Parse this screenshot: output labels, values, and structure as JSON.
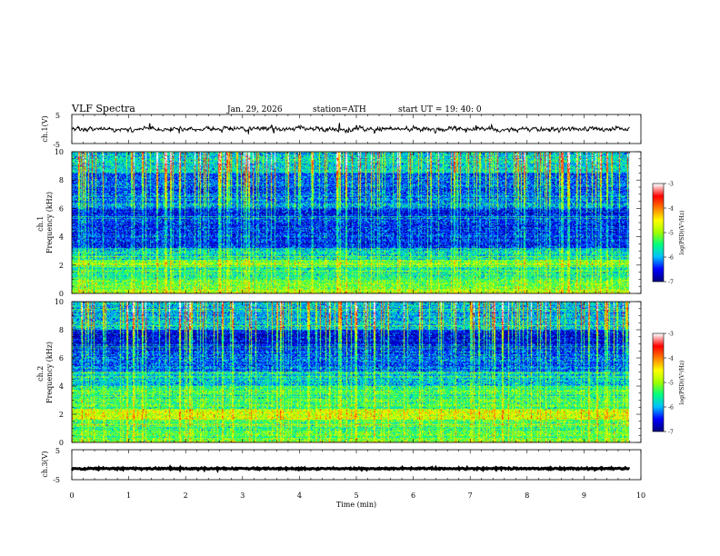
{
  "header": {
    "title": "VLF  Spectra",
    "date": "Jan. 29, 2026",
    "station": "station=ATH",
    "start": "start  UT  =   19: 40: 0"
  },
  "chart_data": [
    {
      "type": "line",
      "panel": "ch1-waveform",
      "ylabel": "ch.1(V)",
      "ylim": [
        -5,
        5
      ],
      "y_ticks": [
        "5",
        "-5"
      ],
      "xlim": [
        0,
        10
      ],
      "data_extent_min": [
        0,
        9.8
      ],
      "typical_amplitude_v": 0.5,
      "spikes": [
        {
          "t": 1.37,
          "v": 1.8
        },
        {
          "t": 3.55,
          "v": -1.3
        },
        {
          "t": 4.7,
          "v": 1.5
        },
        {
          "t": 4.85,
          "v": -1.1
        },
        {
          "t": 5.0,
          "v": 1.2
        },
        {
          "t": 7.1,
          "v": 1.1
        },
        {
          "t": 7.38,
          "v": 1.1
        },
        {
          "t": 7.52,
          "v": -1.0
        }
      ],
      "color": "#000000"
    },
    {
      "type": "heatmap",
      "panel": "ch1-spectrogram",
      "ylabel": "ch.1\nFrequency  (kHz)",
      "ylim": [
        0,
        10
      ],
      "y_ticks": [
        "0",
        "2",
        "4",
        "6",
        "8",
        "10"
      ],
      "xlim": [
        0,
        10
      ],
      "data_extent_min": [
        0,
        9.8
      ],
      "colorbar": {
        "label": "log(PSD)(V²/Hz)",
        "range": [
          -7,
          -3
        ],
        "ticks": [
          "-3",
          "-4",
          "-5",
          "-6",
          "-7"
        ]
      },
      "bands_log_psd": [
        {
          "f": [
            0.0,
            0.4
          ],
          "v": -5.0
        },
        {
          "f": [
            0.4,
            1.0
          ],
          "v": -5.2
        },
        {
          "f": [
            1.0,
            2.0
          ],
          "v": -5.6
        },
        {
          "f": [
            2.0,
            2.4
          ],
          "v": -5.1
        },
        {
          "f": [
            2.4,
            3.2
          ],
          "v": -5.8
        },
        {
          "f": [
            3.2,
            6.0
          ],
          "v": -6.5
        },
        {
          "f": [
            6.0,
            7.0
          ],
          "v": -6.2
        },
        {
          "f": [
            7.0,
            8.5
          ],
          "v": -6.3
        },
        {
          "f": [
            8.5,
            10.0
          ],
          "v": -5.8
        }
      ]
    },
    {
      "type": "heatmap",
      "panel": "ch2-spectrogram",
      "ylabel": "ch.2\nFrequency  (kHz)",
      "ylim": [
        0,
        10
      ],
      "y_ticks": [
        "0",
        "2",
        "4",
        "6",
        "8",
        "10"
      ],
      "xlim": [
        0,
        10
      ],
      "data_extent_min": [
        0,
        9.8
      ],
      "colorbar": {
        "label": "log(PSD)(V²/Hz)",
        "range": [
          -7,
          -3
        ],
        "ticks": [
          "-3",
          "-4",
          "-5",
          "-6",
          "-7"
        ]
      },
      "bands_log_psd": [
        {
          "f": [
            0.0,
            0.6
          ],
          "v": -5.2
        },
        {
          "f": [
            0.6,
            1.6
          ],
          "v": -5.3
        },
        {
          "f": [
            1.6,
            2.4
          ],
          "v": -4.8
        },
        {
          "f": [
            2.4,
            4.0
          ],
          "v": -5.4
        },
        {
          "f": [
            4.0,
            5.0
          ],
          "v": -5.9
        },
        {
          "f": [
            5.0,
            6.5
          ],
          "v": -6.3
        },
        {
          "f": [
            6.5,
            8.0
          ],
          "v": -6.6
        },
        {
          "f": [
            8.0,
            10.0
          ],
          "v": -6.0
        }
      ]
    },
    {
      "type": "line",
      "panel": "ch3-waveform",
      "ylabel": "ch.3(V)",
      "ylim": [
        -5,
        5
      ],
      "y_ticks": [
        "5",
        "-5"
      ],
      "xlim": [
        0,
        10
      ],
      "data_extent_min": [
        0,
        9.8
      ],
      "level_v": -1.3,
      "color": "#000000"
    }
  ],
  "xaxis": {
    "label": "Time  (min)",
    "ticks": [
      "0",
      "1",
      "2",
      "3",
      "4",
      "5",
      "6",
      "7",
      "8",
      "9",
      "10"
    ],
    "range": [
      0,
      10
    ]
  },
  "colormap": [
    "#000080",
    "#0000ff",
    "#00c0ff",
    "#00ff80",
    "#a0ff00",
    "#ffff00",
    "#ff8000",
    "#ff0000",
    "#ffffff"
  ]
}
